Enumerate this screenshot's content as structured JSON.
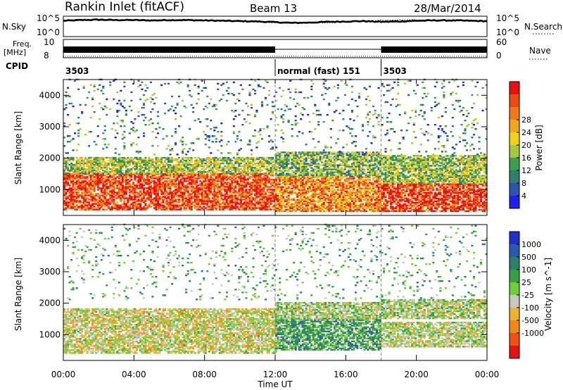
{
  "header": {
    "title": "Rankin Inlet (fitACF)",
    "beam": "Beam 13",
    "date": "28/Mar/2014"
  },
  "noise_panel": {
    "left_label": "N.Sky",
    "left_ticks": [
      "10^5",
      "10^0"
    ],
    "right_label": "N.Search",
    "right_ticks": [
      "10^5",
      "10^0"
    ]
  },
  "freq_panel": {
    "left_label_1": "Freq.",
    "left_label_2": "[MHz]",
    "left_ticks": [
      "10",
      "8"
    ],
    "right_label": "Nave",
    "right_ticks": [
      "60",
      "0"
    ]
  },
  "cpid": {
    "label": "CPID",
    "segments": [
      {
        "text": "3503",
        "start": 0,
        "end": 12
      },
      {
        "text": "normal (fast) 151",
        "start": 12,
        "end": 18
      },
      {
        "text": "3503",
        "start": 18,
        "end": 24
      }
    ]
  },
  "x_axis": {
    "label": "Time UT",
    "ticks": [
      "00:00",
      "04:00",
      "08:00",
      "12:00",
      "16:00",
      "20:00",
      "00:00"
    ]
  },
  "power_panel": {
    "ylabel": "Slant Range [km]",
    "yticks": [
      "1000",
      "2000",
      "3000",
      "4000"
    ],
    "colorbar_label": "Power [dB]",
    "colorbar_ticks": [
      "4",
      "8",
      "12",
      "16",
      "20",
      "24",
      "28"
    ],
    "colors": [
      "#1f1ff0",
      "#2a55a8",
      "#2f7f6a",
      "#3aa050",
      "#a8c83c",
      "#f0d11c",
      "#f0a818",
      "#f07818",
      "#f04a14",
      "#e81010"
    ]
  },
  "velocity_panel": {
    "ylabel": "Slant Range [km]",
    "yticks": [
      "1000",
      "2000",
      "3000",
      "4000"
    ],
    "colorbar_label": "Velocity [m s^-1]",
    "colorbar_ticks": [
      "1000",
      "500",
      "100",
      "25",
      "-25",
      "-100",
      "-500",
      "-1000"
    ],
    "colors": [
      "#1f2fc8",
      "#2a5ab0",
      "#2e7f6a",
      "#3aa048",
      "#6fcf3a",
      "#c8c8c0",
      "#f0b030",
      "#f08818",
      "#f05010",
      "#e81010"
    ]
  },
  "chart_data": [
    {
      "type": "line",
      "name": "noise",
      "x_range": [
        0,
        24
      ],
      "series": [
        {
          "name": "N.Sky",
          "x": [
            0,
            1,
            2,
            3,
            4,
            5,
            6,
            7,
            8,
            9,
            10,
            11,
            12,
            13,
            14,
            15,
            16,
            17,
            18,
            19,
            20,
            21,
            22,
            23,
            24
          ],
          "values_log10": [
            4.1,
            4.3,
            4.4,
            4.3,
            4.3,
            4.2,
            4.3,
            4.3,
            4.2,
            4.1,
            4.0,
            3.9,
            3.7,
            3.5,
            3.6,
            3.8,
            3.9,
            4.0,
            3.8,
            3.9,
            4.1,
            4.2,
            4.2,
            4.1,
            4.0
          ]
        },
        {
          "name": "N.Search",
          "x": [
            0,
            1,
            2,
            3,
            4,
            5,
            6,
            7,
            8,
            9,
            10,
            11,
            12,
            13,
            14,
            15,
            16,
            17,
            18,
            19,
            20,
            21,
            22,
            23,
            24
          ],
          "values_log10": [
            4.0,
            4.2,
            4.3,
            4.2,
            4.2,
            4.1,
            4.2,
            4.2,
            4.1,
            4.0,
            3.9,
            3.8,
            3.6,
            3.4,
            3.5,
            3.6,
            3.8,
            3.9,
            4.2,
            4.3,
            4.3,
            4.3,
            4.1,
            4.0,
            3.9
          ]
        }
      ]
    },
    {
      "type": "line",
      "name": "frequency",
      "x_range": [
        0,
        24
      ],
      "series": [
        {
          "name": "Freq.",
          "x": [
            0,
            12,
            18,
            24
          ],
          "values": [
            10.5,
            10.5,
            10.5,
            10.5
          ]
        },
        {
          "name": "Nave",
          "x": [
            0,
            12,
            18,
            24
          ],
          "values": [
            25,
            5,
            25,
            25
          ]
        }
      ]
    },
    {
      "type": "heatmap",
      "name": "power",
      "x_range": [
        0,
        24
      ],
      "ylim": [
        180,
        4500
      ],
      "zlim": [
        0,
        30
      ],
      "blocks": [
        {
          "t0": 0,
          "t1": 12,
          "r0": 350,
          "r1": 1500,
          "z": 26
        },
        {
          "t0": 0,
          "t1": 12,
          "r0": 1500,
          "r1": 2000,
          "z": 14
        },
        {
          "t0": 12,
          "t1": 18,
          "r0": 300,
          "r1": 1400,
          "z": 22
        },
        {
          "t0": 12,
          "t1": 18,
          "r0": 1400,
          "r1": 2200,
          "z": 12
        },
        {
          "t0": 18,
          "t1": 24,
          "r0": 300,
          "r1": 1200,
          "z": 27
        },
        {
          "t0": 18,
          "t1": 24,
          "r0": 1200,
          "r1": 2100,
          "z": 13
        },
        {
          "t0": 0,
          "t1": 24,
          "r0": 2100,
          "r1": 4500,
          "z": 8
        }
      ]
    },
    {
      "type": "heatmap",
      "name": "velocity",
      "x_range": [
        0,
        24
      ],
      "ylim": [
        180,
        4500
      ],
      "zlim": [
        -1000,
        1000
      ],
      "blocks": [
        {
          "t0": 0,
          "t1": 12,
          "r0": 400,
          "r1": 1800,
          "z": 120
        },
        {
          "t0": 12,
          "t1": 18,
          "r0": 500,
          "r1": 1500,
          "z": -300
        },
        {
          "t0": 12,
          "t1": 18,
          "r0": 1500,
          "r1": 2000,
          "z": 0
        },
        {
          "t0": 18,
          "t1": 24,
          "r0": 600,
          "r1": 1400,
          "z": 60
        },
        {
          "t0": 18,
          "t1": 24,
          "r0": 1500,
          "r1": 2100,
          "z": 0
        },
        {
          "t0": 0,
          "t1": 24,
          "r0": 2100,
          "r1": 4500,
          "z": -200
        }
      ]
    }
  ]
}
